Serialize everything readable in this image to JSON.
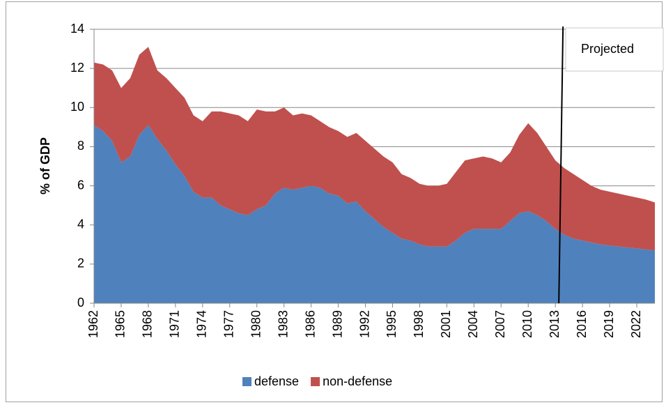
{
  "chart_data": {
    "type": "stacked-area",
    "y_label": "% of GDP",
    "x": [
      1962,
      1963,
      1964,
      1965,
      1966,
      1967,
      1968,
      1969,
      1970,
      1971,
      1972,
      1973,
      1974,
      1975,
      1976,
      1977,
      1978,
      1979,
      1980,
      1981,
      1982,
      1983,
      1984,
      1985,
      1986,
      1987,
      1988,
      1989,
      1990,
      1991,
      1992,
      1993,
      1994,
      1995,
      1996,
      1997,
      1998,
      1999,
      2000,
      2001,
      2002,
      2003,
      2004,
      2005,
      2006,
      2007,
      2008,
      2009,
      2010,
      2011,
      2012,
      2013,
      2014,
      2015,
      2016,
      2017,
      2018,
      2019,
      2020,
      2021,
      2022,
      2023,
      2024
    ],
    "xlim": [
      1962,
      2024
    ],
    "xticks": [
      1962,
      1965,
      1968,
      1971,
      1974,
      1977,
      1980,
      1983,
      1986,
      1989,
      1992,
      1995,
      1998,
      2001,
      2004,
      2007,
      2010,
      2013,
      2016,
      2019,
      2022
    ],
    "ylim": [
      0,
      14
    ],
    "yticks": [
      0,
      2,
      4,
      6,
      8,
      10,
      12,
      14
    ],
    "grid": true,
    "series": [
      {
        "name": "defense",
        "color": "#4f81bd",
        "values": [
          9.1,
          8.8,
          8.3,
          7.2,
          7.5,
          8.6,
          9.1,
          8.4,
          7.8,
          7.1,
          6.5,
          5.7,
          5.4,
          5.4,
          5.0,
          4.8,
          4.6,
          4.5,
          4.8,
          5.0,
          5.6,
          5.9,
          5.8,
          5.9,
          6.0,
          5.9,
          5.6,
          5.5,
          5.1,
          5.2,
          4.7,
          4.3,
          3.9,
          3.6,
          3.3,
          3.2,
          3.0,
          2.9,
          2.9,
          2.9,
          3.2,
          3.6,
          3.8,
          3.8,
          3.8,
          3.8,
          4.2,
          4.6,
          4.7,
          4.5,
          4.2,
          3.8,
          3.5,
          3.3,
          3.2,
          3.1,
          3.0,
          2.95,
          2.9,
          2.85,
          2.8,
          2.75,
          2.7
        ]
      },
      {
        "name": "non-defense",
        "color": "#c0504d",
        "values": [
          3.2,
          3.4,
          3.6,
          3.8,
          4.0,
          4.1,
          4.0,
          3.5,
          3.7,
          3.9,
          4.0,
          3.9,
          3.9,
          4.4,
          4.8,
          4.9,
          5.0,
          4.8,
          5.1,
          4.8,
          4.2,
          4.1,
          3.8,
          3.8,
          3.6,
          3.4,
          3.4,
          3.3,
          3.4,
          3.5,
          3.6,
          3.6,
          3.6,
          3.6,
          3.3,
          3.2,
          3.1,
          3.1,
          3.1,
          3.2,
          3.5,
          3.7,
          3.6,
          3.7,
          3.6,
          3.4,
          3.5,
          4.0,
          4.5,
          4.2,
          3.8,
          3.5,
          3.4,
          3.3,
          3.1,
          2.9,
          2.8,
          2.75,
          2.7,
          2.65,
          2.6,
          2.55,
          2.45
        ]
      }
    ],
    "projection_x": 2014,
    "annotation": "Projected",
    "legend": "bottom"
  }
}
